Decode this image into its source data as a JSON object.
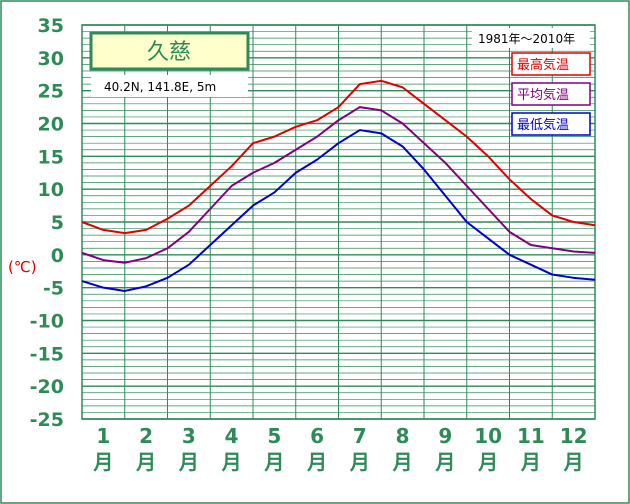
{
  "colors": {
    "grid": "#2e8b57",
    "frame": "#2e8b57",
    "title_fill": "#ffffcc",
    "max": "#e00000",
    "mean": "#800080",
    "min": "#0000cc"
  },
  "chart_data": {
    "type": "line",
    "station_name": "久慈",
    "location": "40.2N,  141.8E,  5m",
    "period": "1981年〜2010年",
    "ylabel": "(℃)",
    "ylim": [
      -25,
      35
    ],
    "ytick_step": 5,
    "yticks": [
      "35",
      "30",
      "25",
      "20",
      "15",
      "10",
      "5",
      "0",
      "-5",
      "-10",
      "-15",
      "-20",
      "-25"
    ],
    "month_numbers": [
      "1",
      "2",
      "3",
      "4",
      "5",
      "6",
      "7",
      "8",
      "9",
      "10",
      "11",
      "12"
    ],
    "month_unit": "月",
    "x": [
      0,
      0.5,
      1,
      1.5,
      2,
      2.5,
      3,
      3.5,
      4,
      4.5,
      5,
      5.5,
      6,
      6.5,
      7,
      7.5,
      8,
      8.5,
      9,
      9.5,
      10,
      10.5,
      11,
      11.5,
      12
    ],
    "series": [
      {
        "name": "最高気温",
        "key": "max",
        "values": [
          5,
          3.8,
          3.3,
          3.8,
          5.5,
          7.5,
          10.5,
          13.5,
          17,
          18,
          19.5,
          20.5,
          22.5,
          26,
          26.5,
          25.5,
          23,
          20.5,
          18,
          15,
          11.5,
          8.5,
          6,
          5,
          4.5
        ]
      },
      {
        "name": "平均気温",
        "key": "mean",
        "values": [
          0.3,
          -0.8,
          -1.2,
          -0.5,
          1,
          3.5,
          7,
          10.5,
          12.5,
          14,
          16,
          18,
          20.5,
          22.5,
          22,
          20,
          17,
          14,
          10.5,
          7,
          3.5,
          1.5,
          1,
          0.5,
          0.3
        ]
      },
      {
        "name": "最低気温",
        "key": "min",
        "values": [
          -4,
          -5,
          -5.5,
          -4.8,
          -3.5,
          -1.5,
          1.5,
          4.5,
          7.5,
          9.5,
          12.5,
          14.5,
          17,
          19,
          18.5,
          16.5,
          13,
          9,
          5,
          2.5,
          0,
          -1.5,
          -3,
          -3.5,
          -3.8
        ]
      }
    ]
  }
}
